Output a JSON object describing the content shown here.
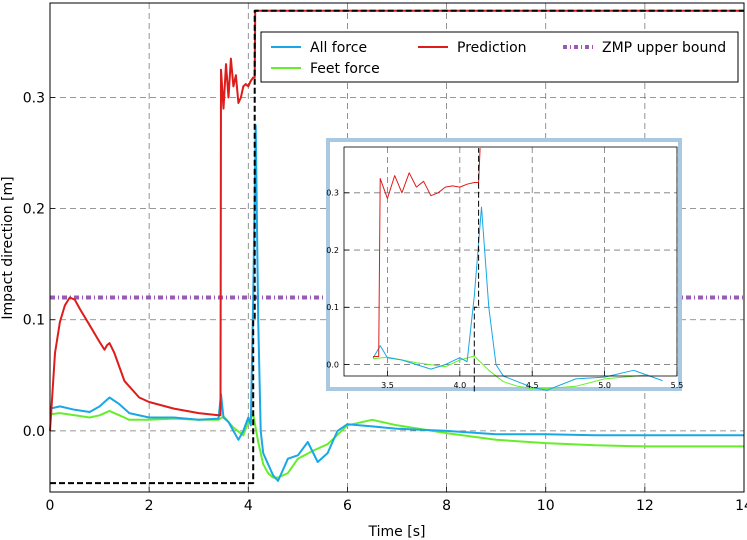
{
  "chart_data": {
    "type": "line",
    "title": "",
    "xlabel": "Time [s]",
    "ylabel": "Impact direction [m]",
    "xlim": [
      0,
      14
    ],
    "ylim": [
      -0.055,
      0.385
    ],
    "xticks": [
      0,
      2,
      4,
      6,
      8,
      10,
      12,
      14
    ],
    "yticks": [
      0.0,
      0.1,
      0.2,
      0.3
    ],
    "ytick_labels": [
      "0.0",
      "0.1",
      "0.2",
      "0.3"
    ],
    "grid": true,
    "legend_position": "top-right",
    "series": [
      {
        "name": "All force",
        "color": "#1aa7e6",
        "x": [
          0,
          0.2,
          0.5,
          0.8,
          1.0,
          1.2,
          1.4,
          1.6,
          2.0,
          2.5,
          3.0,
          3.4,
          3.45,
          3.5,
          3.6,
          3.8,
          3.9,
          4.0,
          4.05,
          4.1,
          4.15,
          4.2,
          4.25,
          4.3,
          4.4,
          4.5,
          4.6,
          4.7,
          4.8,
          5.0,
          5.2,
          5.4,
          5.6,
          5.8,
          6.0,
          6.5,
          7.0,
          8.0,
          9.0,
          10.0,
          11.0,
          12.0,
          13.0,
          14.0
        ],
        "y": [
          0.02,
          0.022,
          0.019,
          0.017,
          0.022,
          0.03,
          0.024,
          0.016,
          0.012,
          0.012,
          0.01,
          0.011,
          0.033,
          0.012,
          0.008,
          -0.008,
          0.0,
          0.012,
          0.005,
          0.12,
          0.275,
          0.1,
          0.0,
          -0.02,
          -0.03,
          -0.04,
          -0.045,
          -0.035,
          -0.025,
          -0.022,
          -0.01,
          -0.028,
          -0.02,
          0.0,
          0.006,
          0.004,
          0.002,
          0.0,
          -0.003,
          -0.003,
          -0.004,
          -0.004,
          -0.004,
          -0.004
        ]
      },
      {
        "name": "Feet force",
        "color": "#66ee2a",
        "x": [
          0,
          0.2,
          0.5,
          0.8,
          1.0,
          1.2,
          1.4,
          1.6,
          2.0,
          2.5,
          3.0,
          3.4,
          3.5,
          3.7,
          3.9,
          4.0,
          4.1,
          4.2,
          4.3,
          4.4,
          4.5,
          4.6,
          4.8,
          5.0,
          5.3,
          5.6,
          6.0,
          6.5,
          7.0,
          8.0,
          9.0,
          10.0,
          11.0,
          12.0,
          13.0,
          14.0
        ],
        "y": [
          0.015,
          0.016,
          0.014,
          0.012,
          0.014,
          0.018,
          0.014,
          0.01,
          0.01,
          0.011,
          0.01,
          0.01,
          0.013,
          0.003,
          -0.004,
          0.008,
          0.015,
          -0.01,
          -0.03,
          -0.038,
          -0.042,
          -0.042,
          -0.038,
          -0.025,
          -0.018,
          -0.012,
          0.005,
          0.01,
          0.005,
          -0.002,
          -0.008,
          -0.011,
          -0.013,
          -0.014,
          -0.014,
          -0.014
        ]
      },
      {
        "name": "Prediction",
        "color": "#dd1c1c",
        "x": [
          0,
          0.1,
          0.2,
          0.3,
          0.4,
          0.5,
          0.6,
          0.8,
          1.0,
          1.1,
          1.15,
          1.2,
          1.3,
          1.5,
          1.8,
          2.0,
          2.5,
          3.0,
          3.4,
          3.44,
          3.45,
          3.5,
          3.55,
          3.6,
          3.65,
          3.7,
          3.75,
          3.8,
          3.85,
          3.9,
          3.95,
          4.0,
          4.05,
          4.1,
          4.13,
          4.14,
          14.0
        ],
        "y": [
          0.0,
          0.07,
          0.098,
          0.113,
          0.12,
          0.118,
          0.11,
          0.095,
          0.08,
          0.073,
          0.077,
          0.079,
          0.07,
          0.045,
          0.03,
          0.026,
          0.02,
          0.016,
          0.014,
          0.014,
          0.325,
          0.29,
          0.33,
          0.3,
          0.335,
          0.31,
          0.32,
          0.295,
          0.3,
          0.31,
          0.312,
          0.31,
          0.315,
          0.318,
          0.318,
          0.378,
          0.378
        ]
      },
      {
        "name": "ZMP upper bound",
        "color": "#9b59b6",
        "x": [
          0,
          14
        ],
        "y": [
          0.12,
          0.12
        ]
      },
      {
        "name": "",
        "color": "#000000",
        "x": [
          0,
          4.1,
          4.1,
          4.13,
          4.13,
          14
        ],
        "y": [
          -0.047,
          -0.047,
          0.1,
          0.1,
          0.378,
          0.378
        ]
      }
    ],
    "inset": {
      "xlim": [
        3.2,
        5.5
      ],
      "ylim": [
        -0.02,
        0.38
      ],
      "xticks": [
        3.5,
        4.0,
        4.5,
        5.0,
        5.5
      ],
      "xtick_labels": [
        "3.5",
        "4.0",
        "4.5",
        "5.0",
        "5.5"
      ],
      "yticks": [
        0.0,
        0.1,
        0.2,
        0.3
      ],
      "ytick_labels": [
        "0.0",
        "0.1",
        "0.2",
        "0.3"
      ]
    }
  }
}
